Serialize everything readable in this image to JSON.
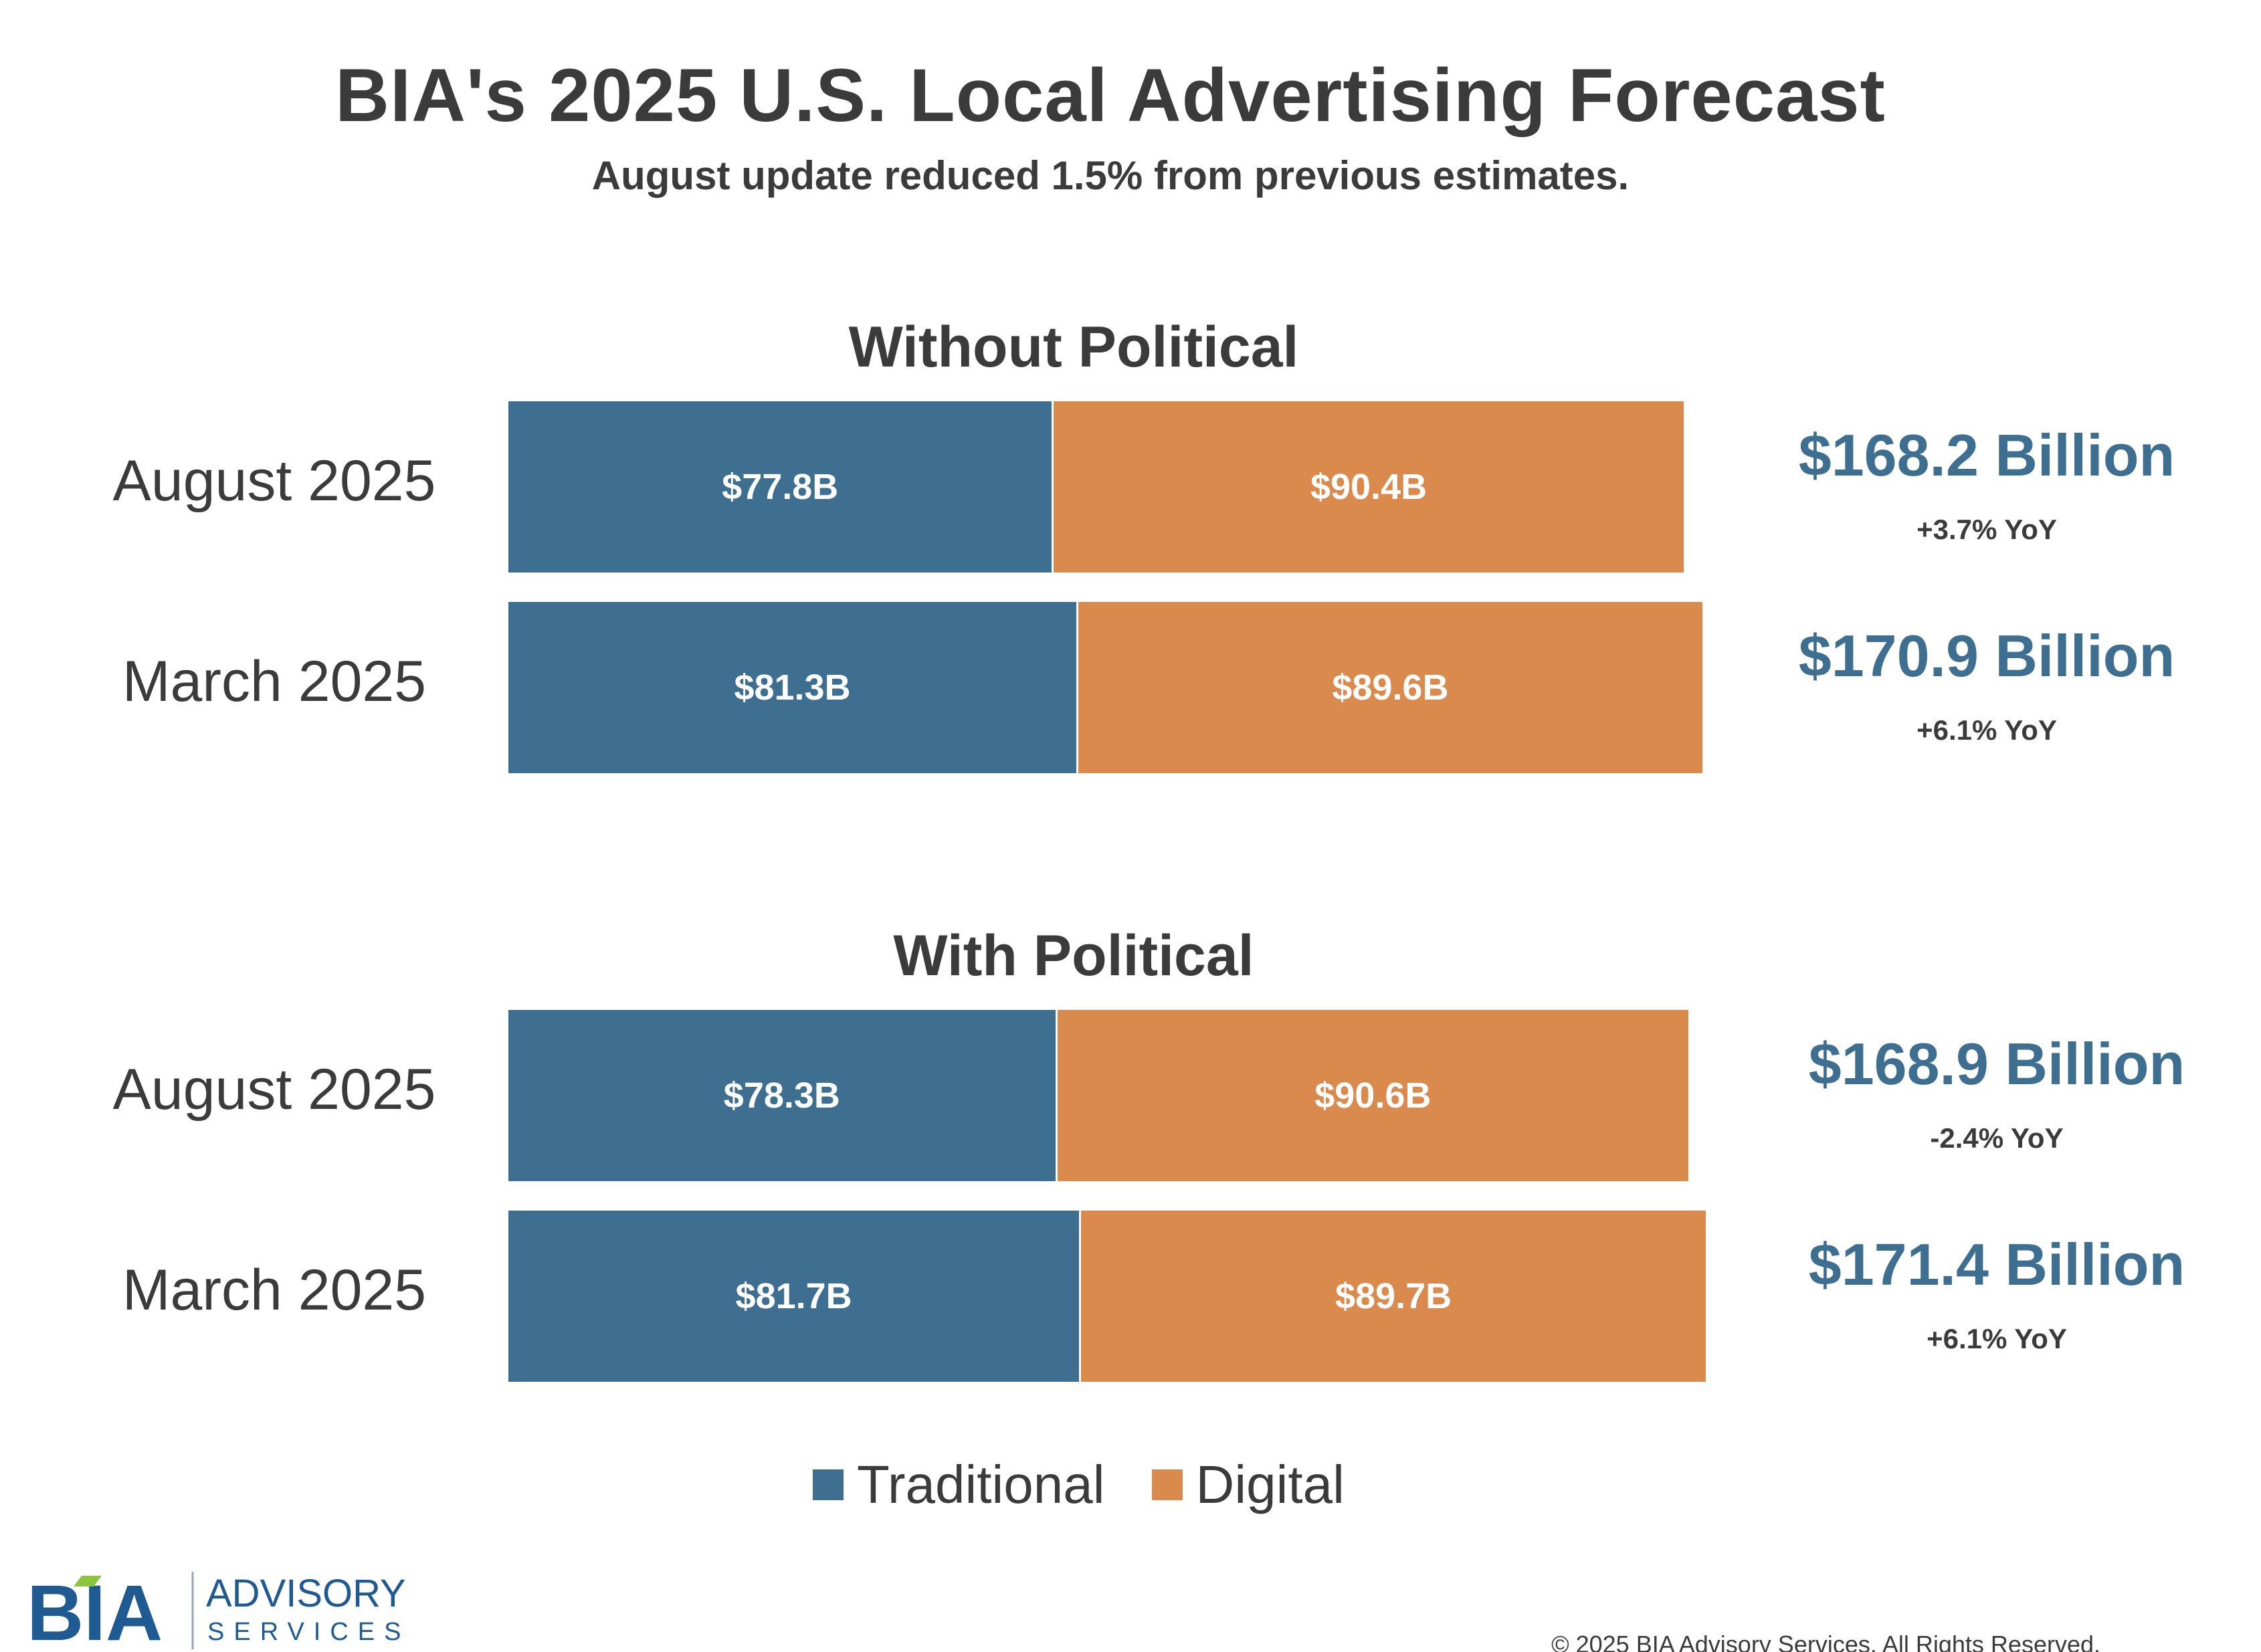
{
  "chart_data": {
    "type": "bar",
    "orientation": "horizontal",
    "stacked": true,
    "title": "BIA's 2025 U.S. Local Advertising Forecast",
    "subtitle": "August update reduced 1.5% from previous estimates.",
    "units": "Billion USD",
    "series_names": [
      "Traditional",
      "Digital"
    ],
    "colors": {
      "Traditional": "#3e6f90",
      "Digital": "#da8a4d"
    },
    "groups": [
      {
        "name": "Without Political",
        "rows": [
          {
            "label": "August 2025",
            "traditional": 77.8,
            "digital": 90.4,
            "traditional_label": "$77.8B",
            "digital_label": "$90.4B",
            "total": "$168.2 Billion",
            "yoy": "+3.7% YoY"
          },
          {
            "label": "March 2025",
            "traditional": 81.3,
            "digital": 89.6,
            "traditional_label": "$81.3B",
            "digital_label": "$89.6B",
            "total": "$170.9 Billion",
            "yoy": "+6.1% YoY"
          }
        ]
      },
      {
        "name": "With Political",
        "rows": [
          {
            "label": "August 2025",
            "traditional": 78.3,
            "digital": 90.6,
            "traditional_label": "$78.3B",
            "digital_label": "$90.6B",
            "total": "$168.9 Billion",
            "yoy": "-2.4% YoY"
          },
          {
            "label": "March 2025",
            "traditional": 81.7,
            "digital": 89.7,
            "traditional_label": "$81.7B",
            "digital_label": "$89.7B",
            "total": "$171.4 Billion",
            "yoy": "+6.1% YoY"
          }
        ]
      }
    ],
    "legend": [
      "Traditional",
      "Digital"
    ],
    "legend_position": "bottom",
    "grid": false
  },
  "logo": {
    "mark": "BIA",
    "line1": "ADVISORY",
    "line2": "SERVICES"
  },
  "copyright": "© 2025 BIA Advisory Services. All Rights Reserved."
}
